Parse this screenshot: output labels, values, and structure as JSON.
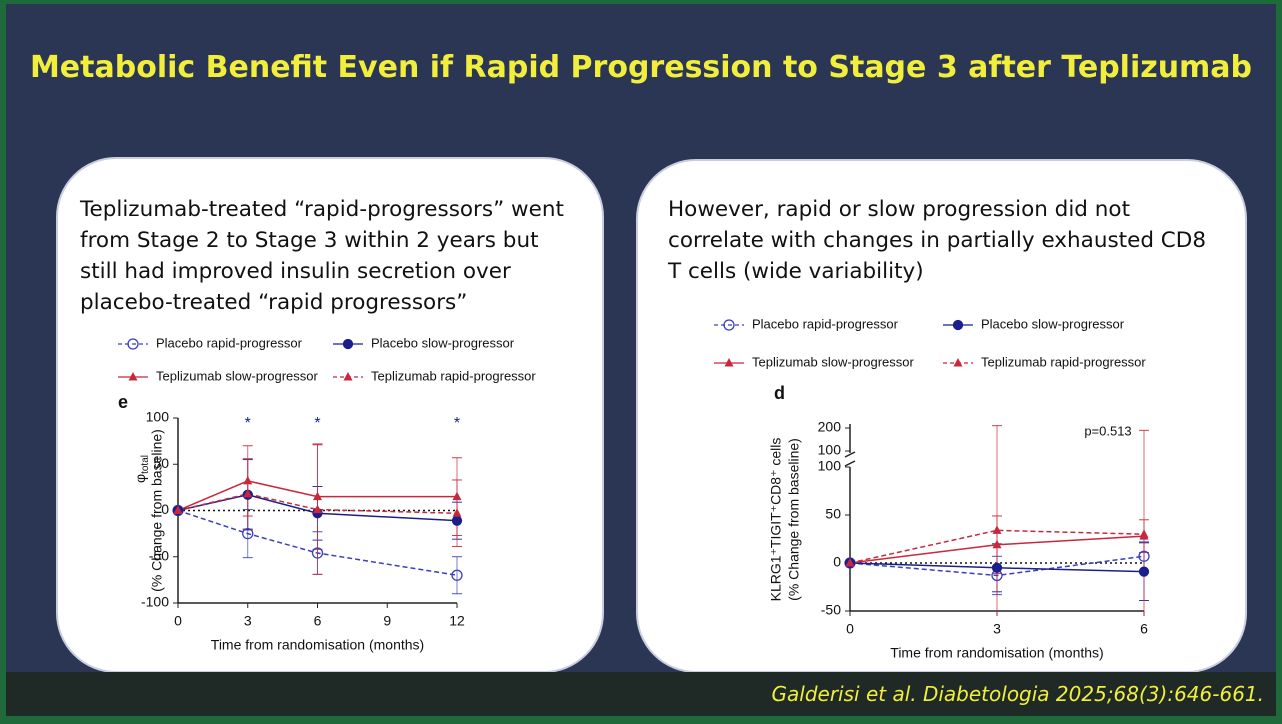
{
  "title": "Metabolic Benefit Even if Rapid Progression to Stage 3 after Teplizumab",
  "left_panel": {
    "text": "Teplizumab-treated “rapid-progressors” went from Stage 2 to Stage 3 within 2 years but still had improved insulin secretion over placebo-treated “rapid progressors”"
  },
  "right_panel": {
    "text": "However, rapid or slow progression did not correlate with changes in partially exhausted CD8 T cells (wide variability)"
  },
  "citation": "Galderisi et al. Diabetologia 2025;68(3):646-661.",
  "chart_data": [
    {
      "type": "line",
      "panel_label": "e",
      "xlabel": "Time from randomisation (months)",
      "ylabel_symbol": "φ",
      "ylabel_subscript": "total",
      "ylabel": "(% Change from baseline)",
      "x": [
        0,
        3,
        6,
        12
      ],
      "xlim": [
        0,
        12
      ],
      "xticks": [
        0,
        3,
        6,
        9,
        12
      ],
      "ylim": [
        -100,
        100
      ],
      "yticks": [
        -100,
        -50,
        0,
        50,
        100
      ],
      "reference_line": 0,
      "annotations": [
        {
          "x": 3,
          "text": "*"
        },
        {
          "x": 6,
          "text": "*"
        },
        {
          "x": 12,
          "text": "*"
        }
      ],
      "series": [
        {
          "name": "Placebo rapid-progressor",
          "color": "#3a3fbf",
          "dashed": true,
          "marker": "circle-open",
          "values": [
            0,
            -25,
            -46,
            -70
          ],
          "errors": [
            0,
            26,
            23,
            20
          ]
        },
        {
          "name": "Placebo slow-progressor",
          "color": "#1a1f8c",
          "dashed": false,
          "marker": "circle",
          "values": [
            0,
            17,
            -3,
            -11
          ],
          "errors": [
            0,
            38,
            29,
            20
          ]
        },
        {
          "name": "Teplizumab slow-progressor",
          "color": "#c8283c",
          "dashed": false,
          "marker": "triangle",
          "values": [
            0,
            32,
            15,
            15
          ],
          "errors": [
            0,
            38,
            57,
            42
          ]
        },
        {
          "name": "Teplizumab rapid-progressor",
          "color": "#c8283c",
          "dashed": true,
          "marker": "triangle",
          "values": [
            0,
            18,
            1,
            -3
          ],
          "errors": [
            0,
            38,
            70,
            36
          ]
        }
      ]
    },
    {
      "type": "line",
      "panel_label": "d",
      "xlabel": "Time from randomisation (months)",
      "ylabel_line1": "KLRG1⁺TIGIT⁺CD8⁺ cells",
      "ylabel": "(% Change from baseline)",
      "annotation": "p=0.513",
      "x": [
        0,
        3,
        6
      ],
      "xlim": [
        0,
        6
      ],
      "xticks": [
        0,
        3,
        6
      ],
      "ylim": [
        -50,
        100
      ],
      "yticks": [
        -50,
        0,
        50,
        100
      ],
      "ylim_upper": [
        100,
        200
      ],
      "yticks_upper": [
        100,
        200
      ],
      "reference_line": 0,
      "series": [
        {
          "name": "Placebo rapid-progressor",
          "color": "#3a3fbf",
          "dashed": true,
          "marker": "circle-open",
          "values": [
            0,
            -13,
            7
          ],
          "errors": [
            0,
            20,
            15
          ]
        },
        {
          "name": "Placebo slow-progressor",
          "color": "#1a1f8c",
          "dashed": false,
          "marker": "circle",
          "values": [
            0,
            -5,
            -9
          ],
          "errors": [
            0,
            25,
            30
          ]
        },
        {
          "name": "Teplizumab slow-progressor",
          "color": "#c8283c",
          "dashed": false,
          "marker": "triangle",
          "values": [
            0,
            19,
            28
          ],
          "errors": [
            0,
            30,
            17
          ]
        },
        {
          "name": "Teplizumab rapid-progressor",
          "color": "#c8283c",
          "dashed": true,
          "marker": "triangle",
          "values": [
            0,
            34,
            30
          ],
          "errors": [
            0,
            176,
            160
          ]
        }
      ]
    }
  ]
}
